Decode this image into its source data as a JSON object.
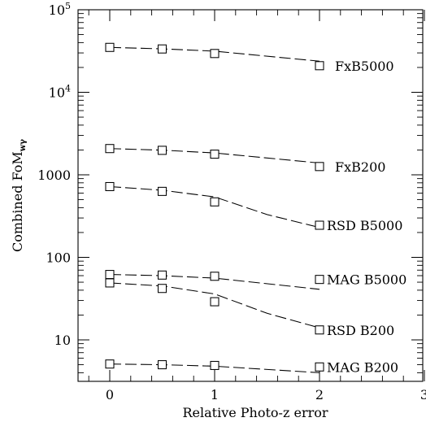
{
  "chart_data": {
    "type": "line",
    "xlabel": "Relative Photo-z error",
    "ylabel": "Combined FoM",
    "ylabel_subscript": "wγ",
    "xlim": [
      -0.3,
      3
    ],
    "ylim": [
      3,
      100000
    ],
    "yscale": "log",
    "grid": false,
    "legend": "none",
    "x_ticks": [
      {
        "value": 0,
        "label": "0"
      },
      {
        "value": 1,
        "label": "1"
      },
      {
        "value": 2,
        "label": "2"
      },
      {
        "value": 3,
        "label": "3"
      }
    ],
    "y_ticks": [
      {
        "value": 10,
        "label": "10",
        "sup": ""
      },
      {
        "value": 100,
        "label": "100",
        "sup": ""
      },
      {
        "value": 1000,
        "label": "1000",
        "sup": ""
      },
      {
        "value": 10000,
        "label": "10",
        "sup": "4"
      },
      {
        "value": 100000,
        "label": "10",
        "sup": "5"
      }
    ],
    "series": [
      {
        "name": "FxB5000",
        "markers": [
          {
            "x": 0,
            "y": 35000
          },
          {
            "x": 0.5,
            "y": 33500
          },
          {
            "x": 1,
            "y": 29500
          },
          {
            "x": 2,
            "y": 21000
          }
        ],
        "curve": [
          {
            "x": 0,
            "y": 35000
          },
          {
            "x": 0.5,
            "y": 33600
          },
          {
            "x": 1,
            "y": 31500
          },
          {
            "x": 2,
            "y": 23800
          }
        ]
      },
      {
        "name": "FxB200",
        "markers": [
          {
            "x": 0,
            "y": 2080
          },
          {
            "x": 0.5,
            "y": 1980
          },
          {
            "x": 1,
            "y": 1780
          },
          {
            "x": 2,
            "y": 1260
          }
        ],
        "curve": [
          {
            "x": 0,
            "y": 2080
          },
          {
            "x": 0.5,
            "y": 1990
          },
          {
            "x": 1,
            "y": 1840
          },
          {
            "x": 2,
            "y": 1390
          }
        ]
      },
      {
        "name": "RSD B5000",
        "markers": [
          {
            "x": 0,
            "y": 720
          },
          {
            "x": 0.5,
            "y": 630
          },
          {
            "x": 1,
            "y": 470
          },
          {
            "x": 2,
            "y": 245
          }
        ],
        "curve": [
          {
            "x": 0,
            "y": 720
          },
          {
            "x": 0.5,
            "y": 650
          },
          {
            "x": 1,
            "y": 540
          },
          {
            "x": 1.5,
            "y": 330
          },
          {
            "x": 2,
            "y": 230
          }
        ]
      },
      {
        "name": "MAG B5000",
        "markers": [
          {
            "x": 0,
            "y": 62
          },
          {
            "x": 0.5,
            "y": 61
          },
          {
            "x": 1,
            "y": 59
          },
          {
            "x": 2,
            "y": 54
          }
        ],
        "curve": [
          {
            "x": 0,
            "y": 62
          },
          {
            "x": 0.5,
            "y": 60
          },
          {
            "x": 1,
            "y": 56
          },
          {
            "x": 2,
            "y": 41
          }
        ]
      },
      {
        "name": "RSD B200",
        "markers": [
          {
            "x": 0,
            "y": 49
          },
          {
            "x": 0.5,
            "y": 42
          },
          {
            "x": 1,
            "y": 29
          },
          {
            "x": 2,
            "y": 13.2
          }
        ],
        "curve": [
          {
            "x": 0,
            "y": 49
          },
          {
            "x": 0.5,
            "y": 45
          },
          {
            "x": 1,
            "y": 36
          },
          {
            "x": 1.5,
            "y": 21
          },
          {
            "x": 2,
            "y": 14
          }
        ]
      },
      {
        "name": "MAG B200",
        "markers": [
          {
            "x": 0,
            "y": 5.1
          },
          {
            "x": 0.5,
            "y": 5.0
          },
          {
            "x": 1,
            "y": 4.9
          },
          {
            "x": 2,
            "y": 4.7
          }
        ],
        "curve": [
          {
            "x": 0,
            "y": 5.1
          },
          {
            "x": 0.5,
            "y": 5.0
          },
          {
            "x": 1,
            "y": 4.8
          },
          {
            "x": 2,
            "y": 4.0
          }
        ]
      }
    ]
  }
}
